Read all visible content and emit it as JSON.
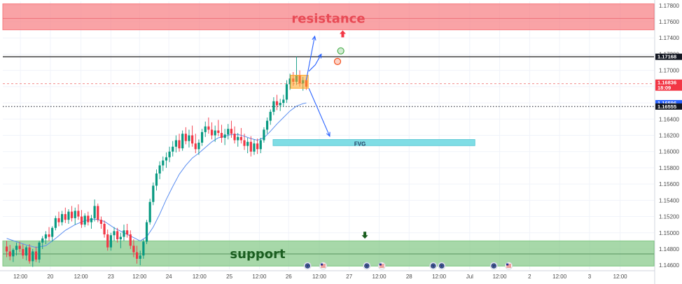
{
  "chart_data": {
    "type": "candlestick",
    "ylim": [
      1.1455,
      1.1785
    ],
    "xlim": [
      0,
      100
    ],
    "y_ticks": [
      "1.17800",
      "1.17600",
      "1.17400",
      "1.17200",
      "1.17000",
      "1.16800",
      "1.16600",
      "1.16400",
      "1.16200",
      "1.16000",
      "1.15800",
      "1.15600",
      "1.15400",
      "1.15200",
      "1.15000",
      "1.14800",
      "1.14600"
    ],
    "x_ticks": [
      {
        "label": "12:00",
        "x": 2.7
      },
      {
        "label": "20",
        "x": 7.3
      },
      {
        "label": "12:00",
        "x": 12.0
      },
      {
        "label": "23",
        "x": 16.6
      },
      {
        "label": "12:00",
        "x": 21.0
      },
      {
        "label": "24",
        "x": 25.5
      },
      {
        "label": "12:00",
        "x": 30.2
      },
      {
        "label": "25",
        "x": 34.8
      },
      {
        "label": "12:00",
        "x": 39.4
      },
      {
        "label": "26",
        "x": 43.9
      },
      {
        "label": "12:00",
        "x": 48.6
      },
      {
        "label": "27",
        "x": 53.2
      },
      {
        "label": "12:00",
        "x": 57.8
      },
      {
        "label": "28",
        "x": 62.4
      },
      {
        "label": "12:00",
        "x": 67.0
      },
      {
        "label": "Jul",
        "x": 71.7
      },
      {
        "label": "12:00",
        "x": 76.3
      },
      {
        "label": "2",
        "x": 80.9
      },
      {
        "label": "12:00",
        "x": 85.5
      },
      {
        "label": "3",
        "x": 90.1
      },
      {
        "label": "12:00",
        "x": 94.8
      }
    ],
    "zones": [
      {
        "name": "resistance",
        "label": "resistance",
        "from": 1.175,
        "to": 1.1782,
        "mid": 1.1764,
        "color": "#f77c80",
        "text_color": "#e84a55"
      },
      {
        "name": "support",
        "label": "support",
        "from": 1.1459,
        "to": 1.149,
        "mid": 1.1474,
        "color": "#81c784",
        "text_color": "#1b5e20"
      }
    ],
    "fvg": {
      "label": "FVG",
      "from": 1.1609,
      "to": 1.1614,
      "x_start": 41.5,
      "x_end": 72.5,
      "color": "#7fdde5"
    },
    "levels": [
      {
        "value": 1.17168,
        "label": "1.17168",
        "style": "solid",
        "line_color": "#1a1a1a",
        "tag_bg": "#131722",
        "tag_fg": "#ffffff"
      },
      {
        "value": 1.16836,
        "label": "1.16836",
        "sublabel": "18:09",
        "style": "dashed",
        "line_color": "#f28b8b",
        "tag_bg": "#f23645",
        "tag_fg": "#ffffff"
      },
      {
        "value": 1.16596,
        "label": "1.16596",
        "style": "none",
        "line_color": "#2962ff",
        "tag_bg": "#2962ff",
        "tag_fg": "#ffffff"
      },
      {
        "value": 1.16555,
        "label": "1.16555",
        "style": "dotted",
        "line_color": "#131722",
        "tag_bg": "#131722",
        "tag_fg": "#ffffff"
      }
    ],
    "candles": [
      [
        0.6,
        1.1483,
        1.149,
        1.147,
        1.1477
      ],
      [
        1.1,
        1.1477,
        1.1485,
        1.1466,
        1.1471
      ],
      [
        1.6,
        1.1471,
        1.1481,
        1.1464,
        1.1479
      ],
      [
        2.1,
        1.1479,
        1.1488,
        1.1472,
        1.1484
      ],
      [
        2.6,
        1.1484,
        1.1489,
        1.1476,
        1.148
      ],
      [
        3.1,
        1.148,
        1.1486,
        1.1468,
        1.1472
      ],
      [
        3.6,
        1.1472,
        1.1484,
        1.1466,
        1.1482
      ],
      [
        4.1,
        1.1482,
        1.1486,
        1.1462,
        1.1465
      ],
      [
        4.6,
        1.1465,
        1.148,
        1.1458,
        1.1477
      ],
      [
        5.1,
        1.1477,
        1.1483,
        1.1464,
        1.1467
      ],
      [
        5.6,
        1.1467,
        1.149,
        1.1463,
        1.1488
      ],
      [
        6.1,
        1.1488,
        1.1496,
        1.148,
        1.1493
      ],
      [
        6.6,
        1.1493,
        1.1502,
        1.1486,
        1.1498
      ],
      [
        7.1,
        1.1498,
        1.1507,
        1.149,
        1.1495
      ],
      [
        7.6,
        1.1495,
        1.1508,
        1.1489,
        1.1506
      ],
      [
        8.1,
        1.1506,
        1.1521,
        1.1503,
        1.1518
      ],
      [
        8.6,
        1.1518,
        1.1526,
        1.1508,
        1.1513
      ],
      [
        9.1,
        1.1513,
        1.1527,
        1.1509,
        1.1523
      ],
      [
        9.6,
        1.1523,
        1.1531,
        1.1512,
        1.1516
      ],
      [
        10.1,
        1.1516,
        1.1529,
        1.1511,
        1.1526
      ],
      [
        10.6,
        1.1526,
        1.1533,
        1.1514,
        1.1518
      ],
      [
        11.1,
        1.1518,
        1.1531,
        1.151,
        1.1527
      ],
      [
        11.6,
        1.1527,
        1.1535,
        1.1516,
        1.152
      ],
      [
        12.1,
        1.152,
        1.1528,
        1.1506,
        1.151
      ],
      [
        12.6,
        1.151,
        1.1524,
        1.1507,
        1.1521
      ],
      [
        13.1,
        1.1521,
        1.1526,
        1.1509,
        1.1513
      ],
      [
        13.6,
        1.1513,
        1.1522,
        1.1505,
        1.1518
      ],
      [
        14.1,
        1.1518,
        1.1541,
        1.1514,
        1.1533
      ],
      [
        14.6,
        1.1533,
        1.1536,
        1.1513,
        1.1516
      ],
      [
        15.1,
        1.1516,
        1.152,
        1.1505,
        1.1511
      ],
      [
        15.6,
        1.1511,
        1.1515,
        1.1494,
        1.1498
      ],
      [
        16.1,
        1.1498,
        1.1504,
        1.1478,
        1.1482
      ],
      [
        16.6,
        1.1482,
        1.15,
        1.1478,
        1.1497
      ],
      [
        17.1,
        1.1497,
        1.1507,
        1.149,
        1.1502
      ],
      [
        17.6,
        1.1502,
        1.1506,
        1.1488,
        1.1492
      ],
      [
        18.1,
        1.1492,
        1.15,
        1.1481,
        1.1495
      ],
      [
        18.6,
        1.1495,
        1.151,
        1.149,
        1.1503
      ],
      [
        19.1,
        1.1503,
        1.1511,
        1.1494,
        1.1498
      ],
      [
        19.6,
        1.1498,
        1.1503,
        1.148,
        1.1484
      ],
      [
        20.1,
        1.1484,
        1.1492,
        1.147,
        1.1476
      ],
      [
        20.6,
        1.1476,
        1.1484,
        1.1462,
        1.1468
      ],
      [
        21.1,
        1.1468,
        1.1478,
        1.146,
        1.1472
      ],
      [
        21.6,
        1.1472,
        1.1492,
        1.1468,
        1.1489
      ],
      [
        22.1,
        1.1489,
        1.1516,
        1.1486,
        1.1513
      ],
      [
        22.6,
        1.1513,
        1.1542,
        1.151,
        1.1538
      ],
      [
        23.1,
        1.1538,
        1.1562,
        1.1534,
        1.1558
      ],
      [
        23.6,
        1.1558,
        1.1578,
        1.1552,
        1.1573
      ],
      [
        24.1,
        1.1573,
        1.1588,
        1.1566,
        1.1583
      ],
      [
        24.6,
        1.1583,
        1.1594,
        1.1576,
        1.1589
      ],
      [
        25.1,
        1.1589,
        1.1599,
        1.158,
        1.1593
      ],
      [
        25.6,
        1.1593,
        1.1606,
        1.1587,
        1.16
      ],
      [
        26.1,
        1.16,
        1.1613,
        1.1594,
        1.1606
      ],
      [
        26.6,
        1.1606,
        1.162,
        1.1599,
        1.1614
      ],
      [
        27.1,
        1.1614,
        1.1622,
        1.16,
        1.1604
      ],
      [
        27.6,
        1.1604,
        1.1626,
        1.1601,
        1.1622
      ],
      [
        28.1,
        1.1622,
        1.163,
        1.1609,
        1.1613
      ],
      [
        28.6,
        1.1613,
        1.1627,
        1.1605,
        1.162
      ],
      [
        29.1,
        1.162,
        1.1632,
        1.1606,
        1.161
      ],
      [
        29.6,
        1.161,
        1.1622,
        1.1598,
        1.1603
      ],
      [
        30.1,
        1.1603,
        1.1615,
        1.1596,
        1.1611
      ],
      [
        30.6,
        1.1611,
        1.1628,
        1.1607,
        1.1624
      ],
      [
        31.1,
        1.1624,
        1.1637,
        1.1618,
        1.1631
      ],
      [
        31.6,
        1.1631,
        1.1642,
        1.1622,
        1.1627
      ],
      [
        32.1,
        1.1627,
        1.1636,
        1.1615,
        1.162
      ],
      [
        32.6,
        1.162,
        1.1632,
        1.1612,
        1.1626
      ],
      [
        33.1,
        1.1626,
        1.1639,
        1.1619,
        1.1623
      ],
      [
        33.6,
        1.1623,
        1.1633,
        1.1611,
        1.1617
      ],
      [
        34.1,
        1.1617,
        1.1628,
        1.1608,
        1.1621
      ],
      [
        34.6,
        1.1621,
        1.1634,
        1.1615,
        1.1628
      ],
      [
        35.1,
        1.1628,
        1.1638,
        1.1617,
        1.1622
      ],
      [
        35.6,
        1.1622,
        1.1631,
        1.161,
        1.1614
      ],
      [
        36.1,
        1.1614,
        1.1623,
        1.1606,
        1.1618
      ],
      [
        36.6,
        1.1618,
        1.1629,
        1.161,
        1.1614
      ],
      [
        37.1,
        1.1614,
        1.1622,
        1.1602,
        1.1607
      ],
      [
        37.6,
        1.1607,
        1.1617,
        1.1598,
        1.1612
      ],
      [
        38.1,
        1.1612,
        1.1619,
        1.1594,
        1.16
      ],
      [
        38.6,
        1.16,
        1.1615,
        1.1596,
        1.161
      ],
      [
        39.1,
        1.161,
        1.1616,
        1.1597,
        1.1603
      ],
      [
        39.6,
        1.1603,
        1.1617,
        1.1598,
        1.1614
      ],
      [
        40.1,
        1.1614,
        1.163,
        1.1611,
        1.1627
      ],
      [
        40.6,
        1.1627,
        1.1642,
        1.1622,
        1.1638
      ],
      [
        41.1,
        1.1638,
        1.1652,
        1.1633,
        1.1649
      ],
      [
        41.6,
        1.1649,
        1.1667,
        1.1645,
        1.1662
      ],
      [
        42.1,
        1.1662,
        1.167,
        1.1651,
        1.1657
      ],
      [
        42.6,
        1.1657,
        1.1665,
        1.165,
        1.166
      ],
      [
        43.1,
        1.166,
        1.167,
        1.1655,
        1.1664
      ],
      [
        43.6,
        1.1664,
        1.1688,
        1.166,
        1.1683
      ],
      [
        44.1,
        1.1683,
        1.1696,
        1.1676,
        1.169
      ],
      [
        44.6,
        1.169,
        1.1698,
        1.1681,
        1.1686
      ],
      [
        45.1,
        1.1686,
        1.1717,
        1.1682,
        1.1694
      ],
      [
        45.6,
        1.1694,
        1.17,
        1.168,
        1.1684
      ],
      [
        46.1,
        1.1684,
        1.1692,
        1.1675,
        1.1688
      ],
      [
        46.6,
        1.1688,
        1.169,
        1.1676,
        1.168
      ]
    ],
    "ma": [
      [
        0.6,
        1.1493
      ],
      [
        2.1,
        1.1489
      ],
      [
        3.6,
        1.1485
      ],
      [
        5.1,
        1.1482
      ],
      [
        6.6,
        1.1484
      ],
      [
        8.1,
        1.1493
      ],
      [
        9.6,
        1.1503
      ],
      [
        11.1,
        1.151
      ],
      [
        12.6,
        1.1515
      ],
      [
        14.1,
        1.1517
      ],
      [
        15.6,
        1.1514
      ],
      [
        17.1,
        1.1506
      ],
      [
        18.6,
        1.15
      ],
      [
        20.1,
        1.1494
      ],
      [
        21.1,
        1.149
      ],
      [
        22.1,
        1.1495
      ],
      [
        23.1,
        1.1507
      ],
      [
        24.1,
        1.1523
      ],
      [
        25.1,
        1.1541
      ],
      [
        26.1,
        1.1557
      ],
      [
        27.1,
        1.1572
      ],
      [
        28.1,
        1.1583
      ],
      [
        29.1,
        1.1592
      ],
      [
        30.1,
        1.1598
      ],
      [
        31.1,
        1.1605
      ],
      [
        32.1,
        1.1612
      ],
      [
        33.1,
        1.1617
      ],
      [
        34.1,
        1.1619
      ],
      [
        35.1,
        1.1621
      ],
      [
        36.1,
        1.1621
      ],
      [
        37.1,
        1.1619
      ],
      [
        38.1,
        1.1616
      ],
      [
        39.1,
        1.1614
      ],
      [
        40.1,
        1.1617
      ],
      [
        41.1,
        1.1625
      ],
      [
        42.1,
        1.1634
      ],
      [
        43.1,
        1.1642
      ],
      [
        44.1,
        1.165
      ],
      [
        45.1,
        1.1656
      ],
      [
        46.1,
        1.1659
      ],
      [
        46.6,
        1.166
      ]
    ],
    "highlight_box": {
      "x0": 44.2,
      "x1": 46.9,
      "y0": 1.1678,
      "y1": 1.1694,
      "color": "#ffa726"
    },
    "projection_arrows": [
      {
        "name": "up-arrow-1",
        "points": [
          [
            46.6,
            1.1688
          ],
          [
            47.9,
            1.1742
          ]
        ]
      },
      {
        "name": "up-arrow-2",
        "points": [
          [
            47.0,
            1.1699
          ],
          [
            48.0,
            1.1707
          ],
          [
            48.9,
            1.172
          ]
        ]
      },
      {
        "name": "down-arrow",
        "points": [
          [
            47.0,
            1.1678
          ],
          [
            50.2,
            1.1619
          ]
        ]
      }
    ],
    "markers": [
      {
        "name": "red-up-arrow",
        "shape": "arrow-up",
        "x": 52.2,
        "y": 1.1745,
        "color": "#f23645"
      },
      {
        "name": "green-circle",
        "shape": "circle",
        "x": 51.9,
        "y": 1.1724,
        "color": "#4caf50"
      },
      {
        "name": "red-circle",
        "shape": "circle",
        "x": 51.4,
        "y": 1.1711,
        "color": "#f4511e"
      },
      {
        "name": "green-down-arrow",
        "shape": "arrow-down",
        "x": 55.6,
        "y": 1.1497,
        "color": "#1b5e20"
      }
    ],
    "event_icons": [
      {
        "name": "eu-event-icon",
        "flag": "eu",
        "x": 46.8
      },
      {
        "name": "us-event-icon",
        "flag": "us",
        "x": 49.2
      },
      {
        "name": "eu-event-icon",
        "flag": "eu",
        "x": 55.9
      },
      {
        "name": "us-event-icon",
        "flag": "us",
        "x": 58.2
      },
      {
        "name": "eu-event-icon",
        "flag": "eu",
        "x": 66.1
      },
      {
        "name": "eu-event-icon",
        "flag": "eu",
        "x": 67.4
      },
      {
        "name": "eu-event-icon",
        "flag": "eu",
        "x": 75.4
      },
      {
        "name": "us-event-icon",
        "flag": "us",
        "x": 77.7
      }
    ],
    "colors": {
      "up": "#089981",
      "down": "#f23645",
      "ma": "#5b8ef0",
      "grid": "#f0f3fa",
      "arrow": "#2962ff"
    }
  }
}
